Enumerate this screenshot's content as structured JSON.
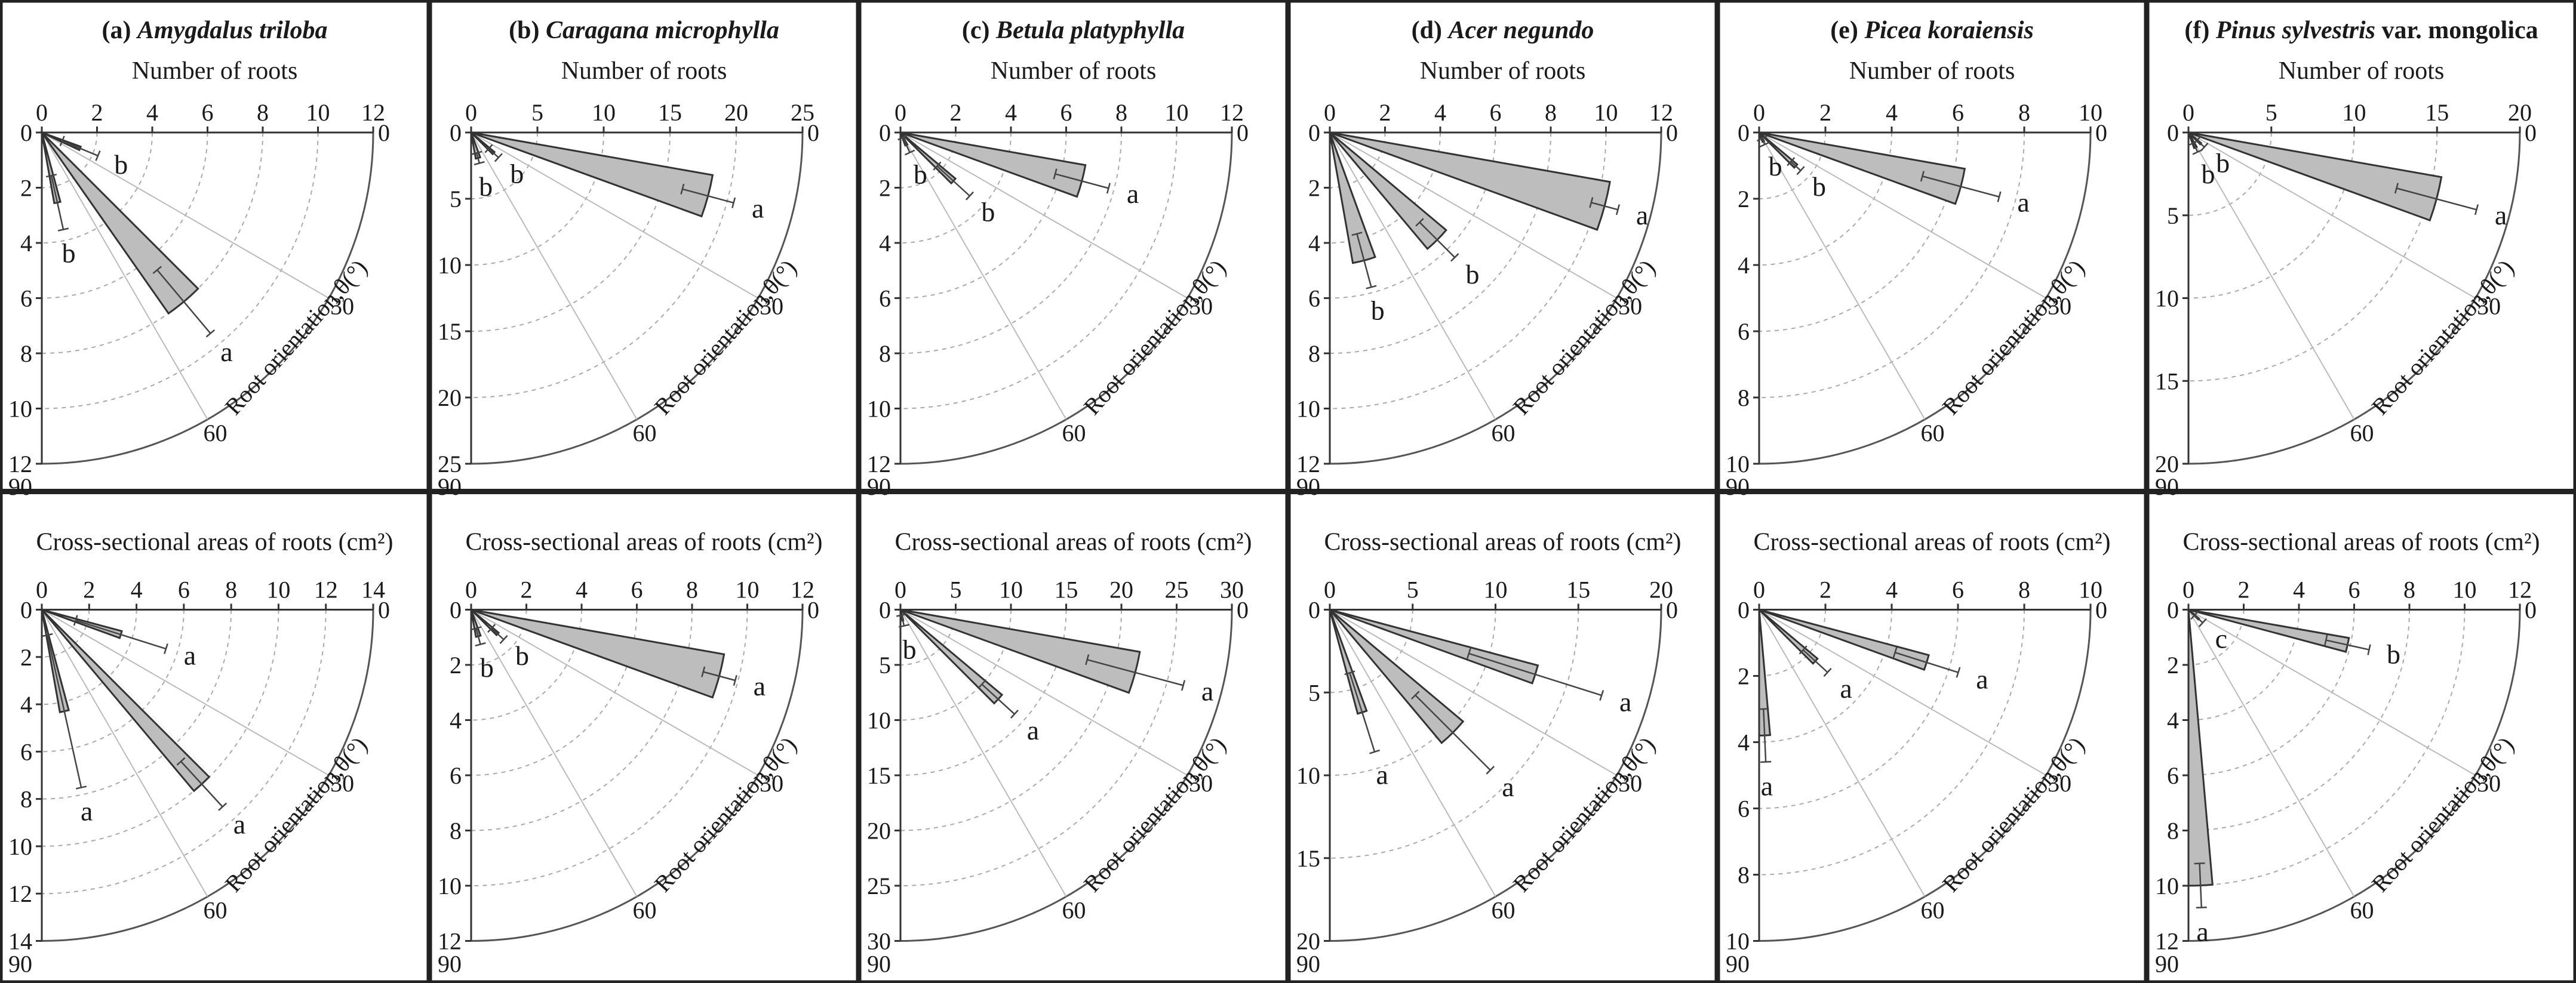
{
  "figure": {
    "x_axis_title_top": "Number of roots",
    "x_axis_title_bottom": "Cross-sectional areas of roots (cm²)",
    "angle_axis_title": "Root orientation,θ(°)",
    "angle_ticks": [
      "0",
      "30",
      "60",
      "90"
    ]
  },
  "chart_data": [
    {
      "type": "polar-bar",
      "panel": "(a)",
      "species": "Amygdalus triloba",
      "var_suffix": "",
      "row": "top",
      "measure": "Number of roots",
      "max": 12,
      "ticks": [
        0,
        2,
        4,
        6,
        8,
        10,
        12
      ],
      "sectors": [
        {
          "angle_range": [
            20,
            25
          ],
          "value": 1.5,
          "err": 0.7,
          "label": "b"
        },
        {
          "angle_range": [
            45,
            55
          ],
          "value": 8.0,
          "err": 1.5,
          "label": "a"
        },
        {
          "angle_range": [
            75,
            80
          ],
          "value": 2.6,
          "err": 1.0,
          "label": "b"
        }
      ]
    },
    {
      "type": "polar-bar",
      "panel": "(b)",
      "species": "Caragana microphylla",
      "var_suffix": "",
      "row": "top",
      "measure": "Number of roots",
      "max": 25,
      "ticks": [
        0,
        5,
        10,
        15,
        20,
        25
      ],
      "sectors": [
        {
          "angle_range": [
            10,
            20
          ],
          "value": 18.5,
          "err": 2.0,
          "label": "a"
        },
        {
          "angle_range": [
            40,
            45
          ],
          "value": 2.3,
          "err": 0.5,
          "label": "b"
        },
        {
          "angle_range": [
            70,
            80
          ],
          "value": 2.0,
          "err": 0.4,
          "label": "b"
        }
      ]
    },
    {
      "type": "polar-bar",
      "panel": "(c)",
      "species": "Betula platyphylla",
      "var_suffix": "",
      "row": "top",
      "measure": "Number of roots",
      "max": 12,
      "ticks": [
        0,
        2,
        4,
        6,
        8,
        10,
        12
      ],
      "sectors": [
        {
          "angle_range": [
            10,
            20
          ],
          "value": 6.8,
          "err": 1.0,
          "label": "a"
        },
        {
          "angle_range": [
            40,
            45
          ],
          "value": 2.6,
          "err": 0.8,
          "label": "b"
        },
        {
          "angle_range": [
            60,
            70
          ],
          "value": 0.5,
          "err": 0.3,
          "label": "b"
        }
      ]
    },
    {
      "type": "polar-bar",
      "panel": "(d)",
      "species": "Acer negundo",
      "var_suffix": "",
      "row": "top",
      "measure": "Number of roots",
      "max": 12,
      "ticks": [
        0,
        2,
        4,
        6,
        8,
        10,
        12
      ],
      "sectors": [
        {
          "angle_range": [
            10,
            20
          ],
          "value": 10.3,
          "err": 0.5,
          "label": "a"
        },
        {
          "angle_range": [
            40,
            50
          ],
          "value": 5.5,
          "err": 0.9,
          "label": "b"
        },
        {
          "angle_range": [
            70,
            80
          ],
          "value": 4.8,
          "err": 1.0,
          "label": "b"
        }
      ]
    },
    {
      "type": "polar-bar",
      "panel": "(e)",
      "species": "Picea koraiensis",
      "var_suffix": "",
      "row": "top",
      "measure": "Number of roots",
      "max": 10,
      "ticks": [
        0,
        2,
        4,
        6,
        8,
        10
      ],
      "sectors": [
        {
          "angle_range": [
            10,
            20
          ],
          "value": 6.3,
          "err": 1.2,
          "label": "a"
        },
        {
          "angle_range": [
            40,
            45
          ],
          "value": 1.5,
          "err": 0.2,
          "label": "b"
        },
        {
          "angle_range": [
            60,
            70
          ],
          "value": 0.3,
          "err": 0.1,
          "label": "b"
        }
      ]
    },
    {
      "type": "polar-bar",
      "panel": "(f)",
      "species": "Pinus sylvestris",
      "var_suffix": "var. mongolica",
      "row": "top",
      "measure": "Number of roots",
      "max": 20,
      "ticks": [
        0,
        5,
        10,
        15,
        20
      ],
      "sectors": [
        {
          "angle_range": [
            10,
            20
          ],
          "value": 15.5,
          "err": 2.5,
          "label": "a"
        },
        {
          "angle_range": [
            40,
            45
          ],
          "value": 1.0,
          "err": 0.3,
          "label": "b"
        },
        {
          "angle_range": [
            60,
            70
          ],
          "value": 1.0,
          "err": 0.3,
          "label": "b"
        }
      ]
    },
    {
      "type": "polar-bar",
      "panel": "(a)",
      "species": "Amygdalus triloba",
      "var_suffix": "",
      "row": "bottom",
      "measure": "Cross-sectional areas of roots (cm²)",
      "max": 14,
      "ticks": [
        0,
        2,
        4,
        6,
        8,
        10,
        12,
        14
      ],
      "sectors": [
        {
          "angle_range": [
            15,
            20
          ],
          "value": 3.5,
          "err": 2.0,
          "label": "a"
        },
        {
          "angle_range": [
            45,
            50
          ],
          "value": 10.0,
          "err": 1.3,
          "label": "a"
        },
        {
          "angle_range": [
            75,
            80
          ],
          "value": 4.4,
          "err": 3.3,
          "label": "a"
        }
      ]
    },
    {
      "type": "polar-bar",
      "panel": "(b)",
      "species": "Caragana microphylla",
      "var_suffix": "",
      "row": "bottom",
      "measure": "Cross-sectional areas of roots (cm²)",
      "max": 12,
      "ticks": [
        0,
        2,
        4,
        6,
        8,
        10,
        12
      ],
      "sectors": [
        {
          "angle_range": [
            10,
            20
          ],
          "value": 9.3,
          "err": 0.6,
          "label": "a"
        },
        {
          "angle_range": [
            40,
            45
          ],
          "value": 1.3,
          "err": 0.3,
          "label": "b"
        },
        {
          "angle_range": [
            70,
            80
          ],
          "value": 1.0,
          "err": 0.3,
          "label": "b"
        }
      ]
    },
    {
      "type": "polar-bar",
      "panel": "(c)",
      "species": "Betula platyphylla",
      "var_suffix": "",
      "row": "bottom",
      "measure": "Cross-sectional areas of roots (cm²)",
      "max": 30,
      "ticks": [
        0,
        5,
        10,
        15,
        20,
        25,
        30
      ],
      "sectors": [
        {
          "angle_range": [
            10,
            20
          ],
          "value": 22.0,
          "err": 4.5,
          "label": "a"
        },
        {
          "angle_range": [
            40,
            45
          ],
          "value": 12.0,
          "err": 2.0,
          "label": "a"
        },
        {
          "angle_range": [
            75,
            80
          ],
          "value": 1.0,
          "err": 0.5,
          "label": "b"
        }
      ]
    },
    {
      "type": "polar-bar",
      "panel": "(d)",
      "species": "Acer negundo",
      "var_suffix": "",
      "row": "bottom",
      "measure": "Cross-sectional areas of roots (cm²)",
      "max": 20,
      "ticks": [
        0,
        5,
        10,
        15,
        20
      ],
      "sectors": [
        {
          "angle_range": [
            15,
            20
          ],
          "value": 13.0,
          "err": 4.2,
          "label": "a"
        },
        {
          "angle_range": [
            40,
            50
          ],
          "value": 10.5,
          "err": 3.2,
          "label": "a"
        },
        {
          "angle_range": [
            70,
            75
          ],
          "value": 6.5,
          "err": 2.5,
          "label": "a"
        }
      ]
    },
    {
      "type": "polar-bar",
      "panel": "(e)",
      "species": "Picea koraiensis",
      "var_suffix": "",
      "row": "bottom",
      "measure": "Cross-sectional areas of roots (cm²)",
      "max": 10,
      "ticks": [
        0,
        2,
        4,
        6,
        8,
        10
      ],
      "sectors": [
        {
          "angle_range": [
            15,
            20
          ],
          "value": 5.3,
          "err": 1.0,
          "label": "a"
        },
        {
          "angle_range": [
            40,
            45
          ],
          "value": 2.3,
          "err": 0.5,
          "label": "a"
        },
        {
          "angle_range": [
            85,
            90
          ],
          "value": 3.8,
          "err": 0.8,
          "label": "a"
        }
      ]
    },
    {
      "type": "polar-bar",
      "panel": "(f)",
      "species": "Pinus sylvestris",
      "var_suffix": "var. mongolica",
      "row": "bottom",
      "measure": "Cross-sectional areas of roots (cm²)",
      "max": 12,
      "ticks": [
        0,
        2,
        4,
        6,
        8,
        10,
        12
      ],
      "sectors": [
        {
          "angle_range": [
            10,
            15
          ],
          "value": 5.9,
          "err": 0.8,
          "label": "b"
        },
        {
          "angle_range": [
            40,
            45
          ],
          "value": 0.5,
          "err": 0.2,
          "label": "c"
        },
        {
          "angle_range": [
            85,
            90
          ],
          "value": 10.0,
          "err": 0.8,
          "label": "a"
        }
      ]
    }
  ]
}
